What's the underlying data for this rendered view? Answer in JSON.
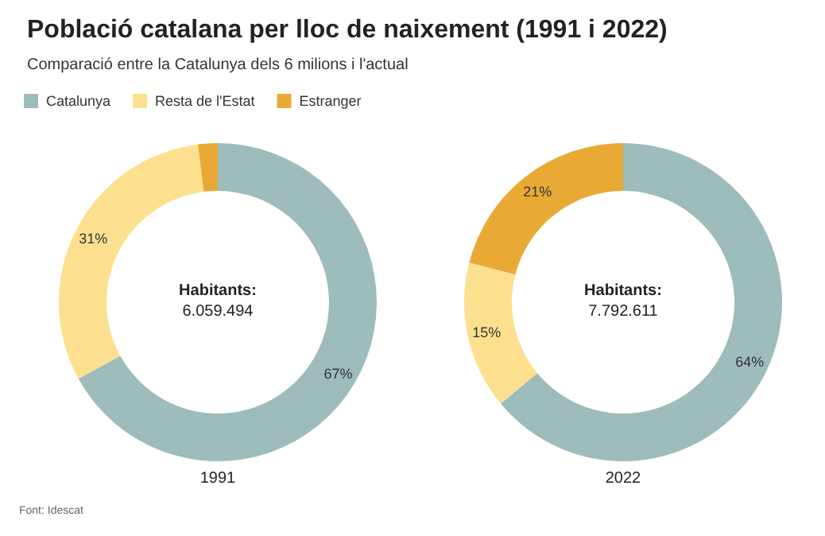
{
  "chart_data": {
    "type": "donut",
    "title": "Població catalana per lloc de naixement (1991 i 2022)",
    "subtitle": "Comparació entre la Catalunya dels 6 milions i l'actual",
    "categories": [
      "Catalunya",
      "Resta de l'Estat",
      "Estranger"
    ],
    "colors": [
      "#9dbcbb",
      "#fde08f",
      "#e8aa35"
    ],
    "legend": "top left",
    "series": [
      {
        "name": "1991",
        "values": [
          67,
          31,
          2
        ],
        "value_labels": [
          "67%",
          "31%",
          null
        ]
      },
      {
        "name": "2022",
        "values": [
          64,
          15,
          21
        ],
        "value_labels": [
          "64%",
          "15%",
          "21%"
        ]
      }
    ],
    "annotations": [
      "Habitants:",
      "6.059.494",
      "Habitants:",
      "7.792.611",
      "Font: Idescat"
    ]
  }
}
